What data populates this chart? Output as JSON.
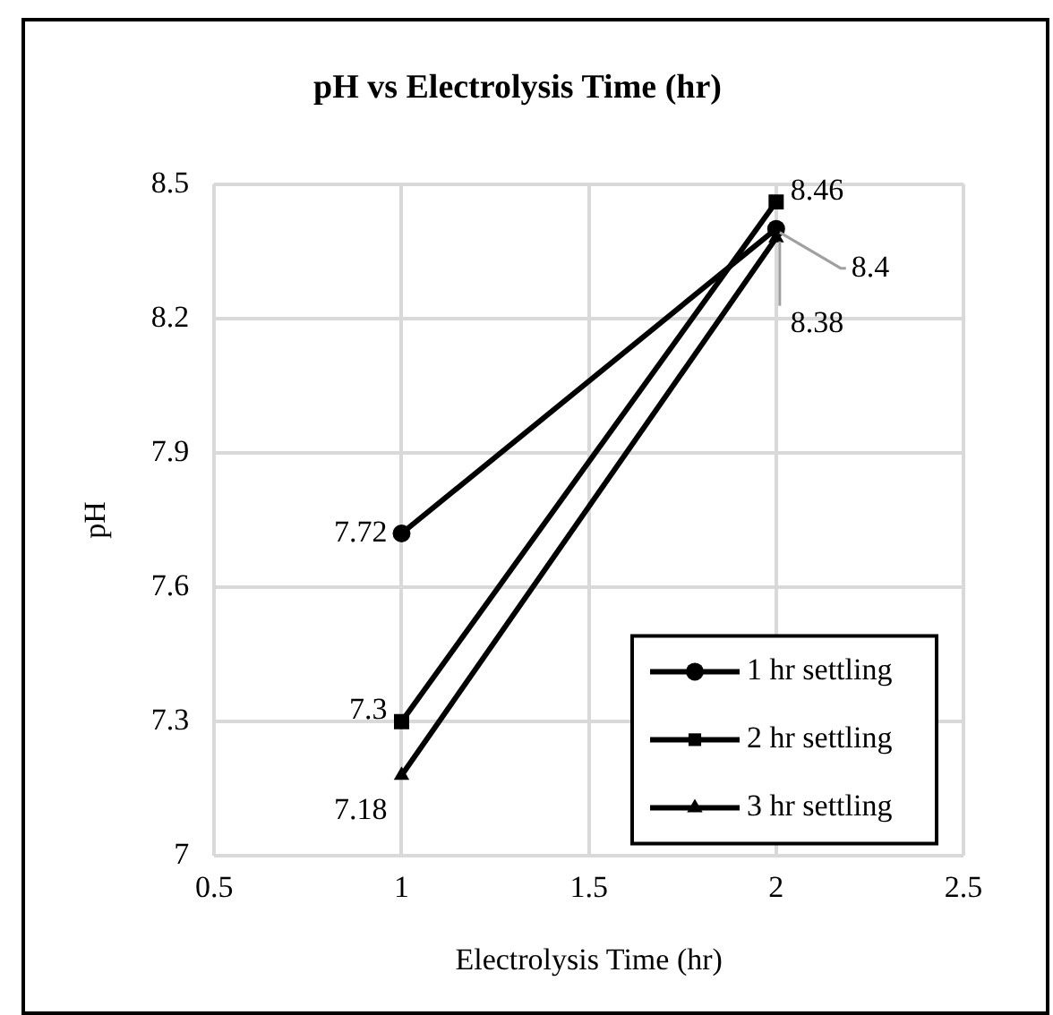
{
  "chart_data": {
    "type": "line",
    "title": "pH vs Electrolysis Time (hr)",
    "xlabel": "Electrolysis Time (hr)",
    "ylabel": "pH",
    "x": [
      1,
      2
    ],
    "series": [
      {
        "name": "1 hr settling",
        "color": "#000000",
        "marker": "circle",
        "values": [
          7.72,
          8.4
        ]
      },
      {
        "name": "2 hr settling",
        "color": "#000000",
        "marker": "square",
        "values": [
          7.3,
          8.46
        ]
      },
      {
        "name": "3 hr settling",
        "color": "#000000",
        "marker": "triangle",
        "values": [
          7.18,
          8.38
        ]
      }
    ],
    "xlim": [
      0.5,
      2.5
    ],
    "xticks": [
      0.5,
      1,
      1.5,
      2,
      2.5
    ],
    "ylim": [
      7,
      8.5
    ],
    "yticks": [
      7,
      7.3,
      7.6,
      7.9,
      8.2,
      8.5
    ],
    "grid": true,
    "legend": "bottom right",
    "data_labels": true,
    "line_style": "solid"
  }
}
